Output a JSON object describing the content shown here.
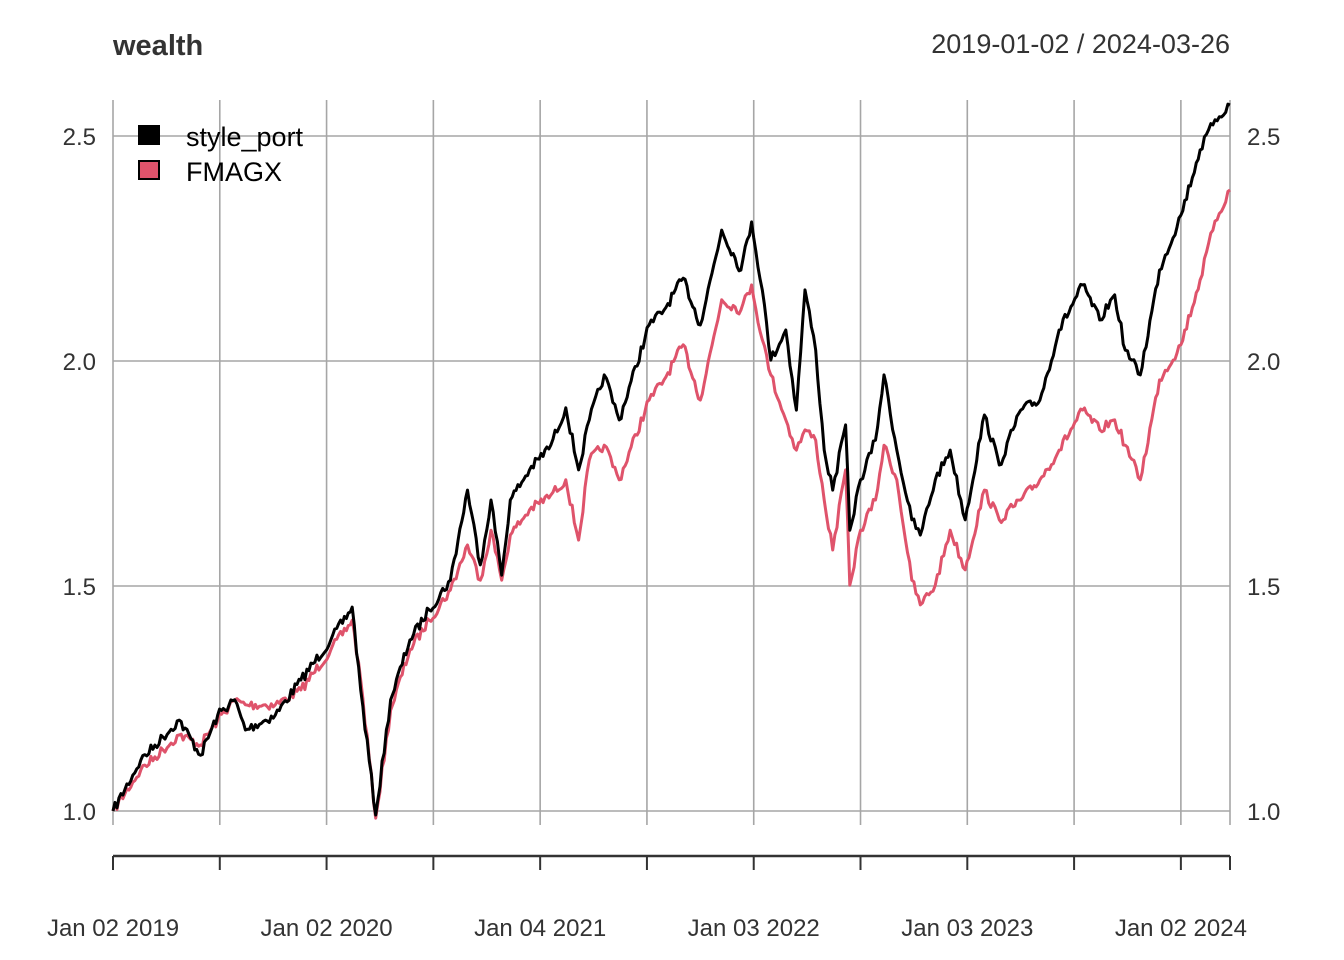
{
  "chart_data": {
    "type": "line",
    "title": "wealth",
    "date_range": "2019-01-02 / 2024-03-26",
    "xlabel": "",
    "ylabel": "",
    "ylim": [
      0.95,
      2.58
    ],
    "xlim_year": [
      2019.0,
      2024.23
    ],
    "y_ticks": [
      "1.0",
      "1.5",
      "2.0",
      "2.5"
    ],
    "y_tick_values": [
      1.0,
      1.5,
      2.0,
      2.5
    ],
    "x_ticks": [
      "Jan 02 2019",
      "Jan 02 2020",
      "Jan 04 2021",
      "Jan 03 2022",
      "Jan 03 2023",
      "Jan 02 2024"
    ],
    "x_tick_years": [
      2019.0,
      2020.0,
      2021.0,
      2022.0,
      2023.0,
      2024.0
    ],
    "x_minor_tick_years": [
      2019.5,
      2020.5,
      2021.5,
      2022.5,
      2023.5,
      2024.23
    ],
    "grid": true,
    "legend": {
      "placement": "top-left",
      "entries": [
        "style_port",
        "FMAGX"
      ]
    },
    "x_year": [
      2019.0,
      2019.13,
      2019.31,
      2019.41,
      2019.49,
      2019.57,
      2019.62,
      2019.76,
      2019.88,
      2020.02,
      2020.12,
      2020.16,
      2020.23,
      2020.3,
      2020.39,
      2020.48,
      2020.58,
      2020.66,
      2020.72,
      2020.77,
      2020.82,
      2020.86,
      2020.95,
      2021.05,
      2021.12,
      2021.18,
      2021.23,
      2021.3,
      2021.37,
      2021.51,
      2021.58,
      2021.67,
      2021.75,
      2021.85,
      2021.94,
      2021.99,
      2022.04,
      2022.08,
      2022.15,
      2022.2,
      2022.24,
      2022.29,
      2022.33,
      2022.37,
      2022.43,
      2022.45,
      2022.5,
      2022.57,
      2022.61,
      2022.67,
      2022.74,
      2022.78,
      2022.85,
      2022.92,
      2022.99,
      2023.08,
      2023.15,
      2023.25,
      2023.34,
      2023.43,
      2023.54,
      2023.62,
      2023.69,
      2023.74,
      2023.81,
      2023.9,
      2024.0,
      2024.09,
      2024.16,
      2024.23
    ],
    "series": [
      {
        "name": "style_port",
        "color": "#000000",
        "values": [
          1.0,
          1.113,
          1.202,
          1.124,
          1.213,
          1.247,
          1.18,
          1.213,
          1.291,
          1.38,
          1.453,
          1.269,
          0.991,
          1.247,
          1.38,
          1.447,
          1.513,
          1.713,
          1.547,
          1.691,
          1.524,
          1.691,
          1.758,
          1.813,
          1.896,
          1.758,
          1.869,
          1.969,
          1.869,
          2.08,
          2.113,
          2.184,
          2.08,
          2.291,
          2.202,
          2.309,
          2.158,
          2.002,
          2.069,
          1.891,
          2.158,
          2.024,
          1.802,
          1.713,
          1.858,
          1.624,
          1.736,
          1.824,
          1.969,
          1.802,
          1.647,
          1.613,
          1.736,
          1.802,
          1.647,
          1.88,
          1.769,
          1.891,
          1.913,
          2.069,
          2.169,
          2.091,
          2.147,
          2.024,
          1.969,
          2.202,
          2.324,
          2.469,
          2.536,
          2.569
        ]
      },
      {
        "name": "FMAGX",
        "color": "#DF536B",
        "values": [
          1.0,
          1.091,
          1.169,
          1.147,
          1.202,
          1.247,
          1.236,
          1.236,
          1.269,
          1.358,
          1.424,
          1.291,
          0.984,
          1.224,
          1.358,
          1.424,
          1.491,
          1.591,
          1.513,
          1.624,
          1.513,
          1.613,
          1.669,
          1.702,
          1.736,
          1.602,
          1.78,
          1.813,
          1.736,
          1.913,
          1.958,
          2.036,
          1.913,
          2.136,
          2.113,
          2.169,
          2.047,
          1.969,
          1.869,
          1.802,
          1.847,
          1.824,
          1.691,
          1.58,
          1.758,
          1.502,
          1.624,
          1.691,
          1.813,
          1.736,
          1.513,
          1.458,
          1.502,
          1.624,
          1.536,
          1.713,
          1.647,
          1.691,
          1.736,
          1.802,
          1.891,
          1.847,
          1.869,
          1.813,
          1.736,
          1.958,
          2.036,
          2.18,
          2.311,
          2.38
        ]
      }
    ]
  }
}
